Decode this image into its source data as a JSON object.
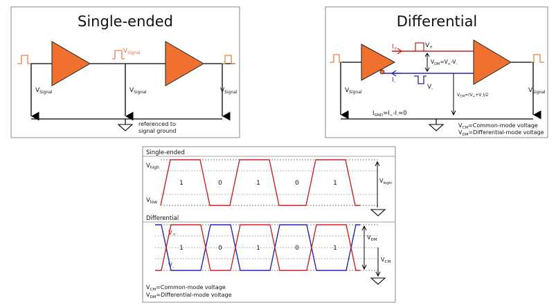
{
  "colors": {
    "amplifier": "#f07030",
    "pulse": "#e88040",
    "positive": "#cc2222",
    "negative": "#2222bb",
    "line": "#000000",
    "panel_border": "#888888"
  },
  "single_ended": {
    "title": "Single-ended",
    "signal_main": "V",
    "signal_sub": "Signal",
    "ground_note_1": "referenced to",
    "ground_note_2": "signal ground"
  },
  "differential": {
    "title": "Differential",
    "v_plus_main": "V",
    "v_plus_sub": "+",
    "v_minus_main": "V",
    "v_minus_sub": "-",
    "i_plus_main": "I",
    "i_plus_sub": "+",
    "i_minus_main": "I",
    "i_minus_sub": "-",
    "vdm_label": "V",
    "vdm_sub": "DM",
    "vdm_eq": "=V",
    "vdm_eq_sub1": "+",
    "vdm_eq_mid": "-V",
    "vdm_eq_sub2": "-",
    "vcm_label": "V",
    "vcm_sub": "CM",
    "vcm_eq": "=(V",
    "vcm_eq_sub1": "+",
    "vcm_eq_mid": "+V",
    "vcm_eq_sub2": "-",
    "vcm_eq_end": ")/2",
    "ignd_label": "I",
    "ignd_sub": "GND",
    "ignd_eq": "=I",
    "ignd_eq_sub1": "+",
    "ignd_eq_mid": "-I",
    "ignd_eq_sub2": "-",
    "ignd_eq_end": "=0",
    "legend_cm": "=Common-mode voltage",
    "legend_dm": "=Differential-mode voltage"
  },
  "timing": {
    "single_ended_title": "Single-ended",
    "differential_title": "Differential",
    "v_high_main": "V",
    "v_high_sub": "high",
    "v_low_main": "V",
    "v_low_sub": "low",
    "v_logic_main": "V",
    "v_logic_sub": "logic",
    "bits": [
      "1",
      "0",
      "1",
      "0",
      "1"
    ],
    "legend_cm": "=Common-mode voltage",
    "legend_dm": "=Differential-mode voltage"
  }
}
